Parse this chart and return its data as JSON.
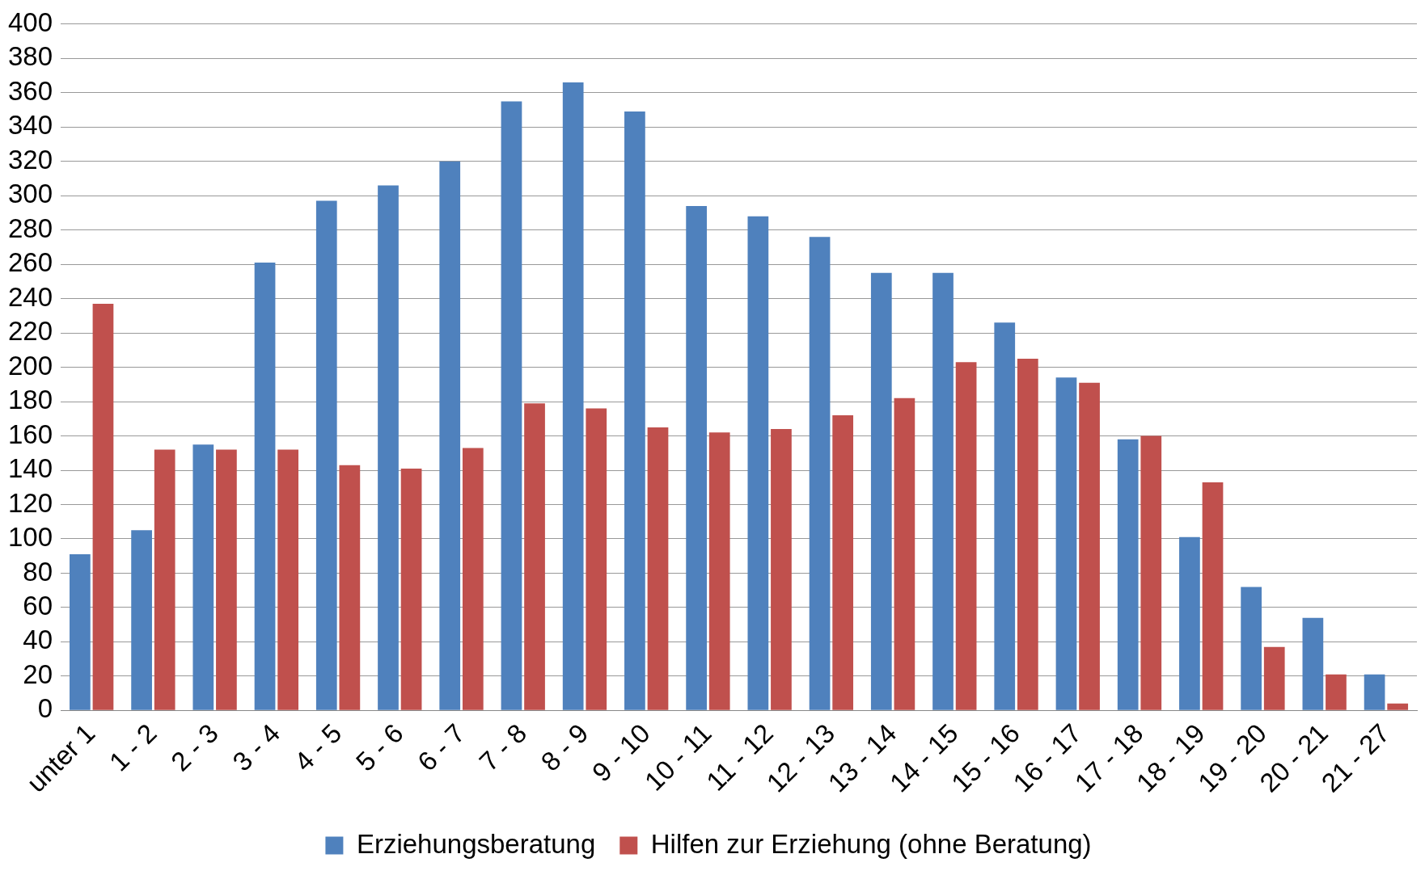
{
  "chart_data": {
    "type": "bar",
    "categories": [
      "unter 1",
      "1 - 2",
      "2 - 3",
      "3 - 4",
      "4 - 5",
      "5 - 6",
      "6 - 7",
      "7 - 8",
      "8 - 9",
      "9 - 10",
      "10 - 11",
      "11 - 12",
      "12 - 13",
      "13 - 14",
      "14 - 15",
      "15 - 16",
      "16 - 17",
      "17 - 18",
      "18 - 19",
      "19 - 20",
      "20 - 21",
      "21 - 27"
    ],
    "series": [
      {
        "name": "Erziehungsberatung",
        "color": "#4f81bd",
        "values": [
          91,
          105,
          155,
          261,
          297,
          306,
          320,
          355,
          366,
          349,
          294,
          288,
          276,
          255,
          255,
          226,
          194,
          158,
          101,
          72,
          54,
          21
        ]
      },
      {
        "name": "Hilfen zur Erziehung (ohne Beratung)",
        "color": "#c0504d",
        "values": [
          237,
          152,
          152,
          152,
          143,
          141,
          153,
          179,
          176,
          165,
          162,
          164,
          172,
          182,
          203,
          205,
          191,
          160,
          133,
          37,
          21,
          4
        ]
      }
    ],
    "ylim": [
      0,
      400
    ],
    "yticks": [
      0,
      20,
      40,
      60,
      80,
      100,
      120,
      140,
      160,
      180,
      200,
      220,
      240,
      260,
      280,
      300,
      320,
      340,
      360,
      380,
      400
    ],
    "grid": "y",
    "legend": "bottom"
  }
}
